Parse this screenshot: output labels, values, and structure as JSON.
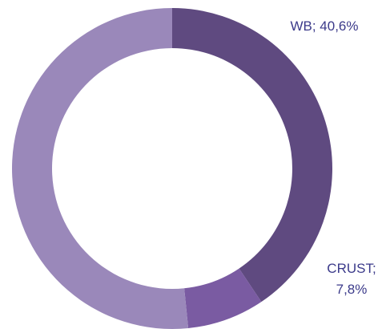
{
  "chart_data": {
    "type": "donut",
    "values": [
      40.6,
      7.8,
      51.6
    ],
    "value_labels": [
      "WB; 40,6%",
      "CRUST; 7,8%",
      null
    ],
    "colors": [
      "#5f4a80",
      "#7a5ba2",
      "#9a88ba"
    ]
  }
}
